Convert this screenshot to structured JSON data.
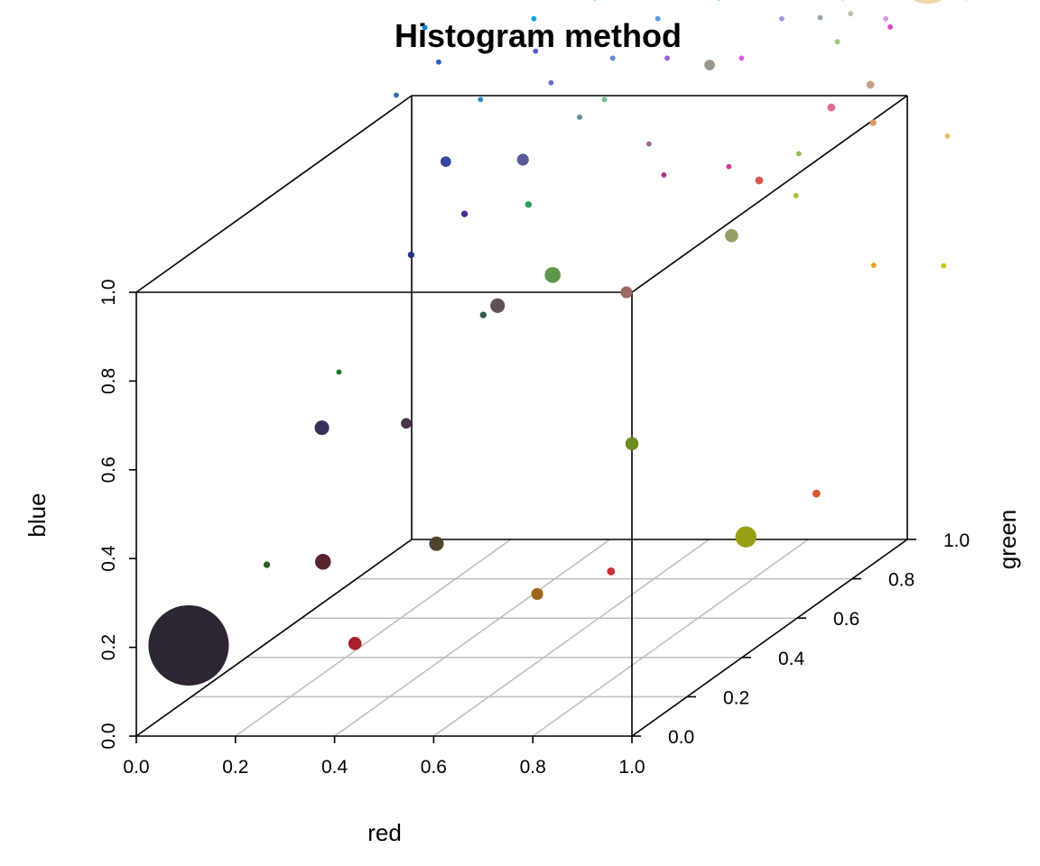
{
  "chart_data": {
    "type": "scatter3d",
    "title": "Histogram method",
    "xlabel": "red",
    "ylabel": "green",
    "zlabel": "blue",
    "xlim": [
      0,
      1
    ],
    "ylim": [
      0,
      1
    ],
    "zlim": [
      0,
      1
    ],
    "x_ticks": [
      "0.0",
      "0.2",
      "0.4",
      "0.6",
      "0.8",
      "1.0"
    ],
    "y_ticks": [
      "0.0",
      "0.2",
      "0.4",
      "0.6",
      "0.8",
      "1.0"
    ],
    "z_ticks": [
      "0.0",
      "0.2",
      "0.4",
      "0.6",
      "0.8",
      "1.0"
    ],
    "grid": true,
    "point_size_encodes": "histogram frequency",
    "points": [
      {
        "x": 0.05,
        "y": 0.1,
        "z": 0.16,
        "size": 6.1,
        "color": "#2d2532"
      },
      {
        "x": 0.33,
        "y": 0.2,
        "z": 0.12,
        "size": 1.0,
        "color": "#a8202a"
      },
      {
        "x": 0.11,
        "y": 0.48,
        "z": 0.18,
        "size": 1.2,
        "color": "#55232c"
      },
      {
        "x": 0.2,
        "y": 0.73,
        "z": 0.11,
        "size": 1.1,
        "color": "#4c472a"
      },
      {
        "x": 0.47,
        "y": 0.61,
        "z": 0.05,
        "size": 0.9,
        "color": "#a06418"
      },
      {
        "x": 0.53,
        "y": 0.77,
        "z": 0.03,
        "size": 0.6,
        "color": "#c83038"
      },
      {
        "x": 0.73,
        "y": 0.9,
        "z": 0.05,
        "size": 1.6,
        "color": "#96a014"
      },
      {
        "x": 0.5,
        "y": 0.9,
        "z": 0.26,
        "size": 1.0,
        "color": "#6e8c1e"
      },
      {
        "x": 0.85,
        "y": 0.94,
        "z": 0.13,
        "size": 0.6,
        "color": "#d85a2a"
      },
      {
        "x": 0.03,
        "y": 0.42,
        "z": 0.2,
        "size": 0.5,
        "color": "#2d5a23"
      },
      {
        "x": 0.03,
        "y": 0.62,
        "z": 0.42,
        "size": 1.1,
        "color": "#34315a"
      },
      {
        "x": 0.15,
        "y": 0.71,
        "z": 0.39,
        "size": 0.8,
        "color": "#4b334e"
      },
      {
        "x": 0.24,
        "y": 0.88,
        "z": 0.58,
        "size": 1.1,
        "color": "#5f5153"
      },
      {
        "x": 0.39,
        "y": 0.81,
        "z": 0.68,
        "size": 1.2,
        "color": "#5c9448"
      },
      {
        "x": 0.5,
        "y": 0.88,
        "z": 0.61,
        "size": 0.9,
        "color": "#9a6a5e"
      },
      {
        "x": 0.69,
        "y": 0.92,
        "z": 0.72,
        "size": 1.0,
        "color": "#969e66"
      },
      {
        "x": 0.02,
        "y": 0.7,
        "z": 0.51,
        "size": 0.4,
        "color": "#14782a"
      },
      {
        "x": 0.2,
        "y": 0.9,
        "z": 0.55,
        "size": 0.5,
        "color": "#2d5a4a"
      },
      {
        "x": 0.06,
        "y": 0.89,
        "z": 0.69,
        "size": 0.5,
        "color": "#2a3288"
      },
      {
        "x": 0.14,
        "y": 0.94,
        "z": 0.76,
        "size": 0.5,
        "color": "#4a2c96"
      },
      {
        "x": 0.28,
        "y": 0.92,
        "z": 0.79,
        "size": 0.5,
        "color": "#2a9c5a"
      },
      {
        "x": 0.13,
        "y": 0.89,
        "z": 0.9,
        "size": 0.8,
        "color": "#3346a0"
      },
      {
        "x": 0.28,
        "y": 0.9,
        "z": 0.9,
        "size": 0.9,
        "color": "#5a5a9a"
      },
      {
        "x": 0.4,
        "y": 0.89,
        "z": 1.0,
        "size": 0.4,
        "color": "#5a8896"
      },
      {
        "x": 0.54,
        "y": 0.89,
        "z": 0.94,
        "size": 0.4,
        "color": "#9a6a9a"
      },
      {
        "x": 0.45,
        "y": 0.89,
        "z": 1.04,
        "size": 0.4,
        "color": "#6ec086"
      },
      {
        "x": 0.57,
        "y": 0.89,
        "z": 0.87,
        "size": 0.4,
        "color": "#b03090"
      },
      {
        "x": 0.69,
        "y": 0.91,
        "z": 0.88,
        "size": 0.4,
        "color": "#d83a8e"
      },
      {
        "x": 0.64,
        "y": 0.93,
        "z": 1.1,
        "size": 0.8,
        "color": "#9a948e"
      },
      {
        "x": 0.74,
        "y": 0.93,
        "z": 0.84,
        "size": 0.6,
        "color": "#d85a50"
      },
      {
        "x": 0.82,
        "y": 0.92,
        "z": 0.81,
        "size": 0.4,
        "color": "#a0c03c"
      },
      {
        "x": 0.82,
        "y": 0.93,
        "z": 0.9,
        "size": 0.4,
        "color": "#92c048"
      },
      {
        "x": 0.88,
        "y": 0.94,
        "z": 1.0,
        "size": 0.6,
        "color": "#e06a8e"
      },
      {
        "x": 0.97,
        "y": 0.93,
        "z": 0.97,
        "size": 0.5,
        "color": "#d89a64"
      },
      {
        "x": 0.97,
        "y": 0.92,
        "z": 1.06,
        "size": 0.6,
        "color": "#c8a08e"
      },
      {
        "x": 0.92,
        "y": 0.89,
        "z": 1.17,
        "size": 0.4,
        "color": "#9ac87a"
      },
      {
        "x": 1.01,
        "y": 0.92,
        "z": 1.19,
        "size": 0.4,
        "color": "#e040c8"
      },
      {
        "x": 1.12,
        "y": 0.93,
        "z": 0.94,
        "size": 0.4,
        "color": "#f0b864"
      },
      {
        "x": 0.91,
        "y": 1.04,
        "z": 0.6,
        "size": 0.4,
        "color": "#e8a020"
      },
      {
        "x": 1.04,
        "y": 1.06,
        "z": 0.59,
        "size": 0.4,
        "color": "#c8c814"
      },
      {
        "x": 1.08,
        "y": 0.93,
        "z": 1.3,
        "size": 4.2,
        "color": "#ecd8a8"
      },
      {
        "x": 0.03,
        "y": 0.89,
        "z": 1.05,
        "size": 0.4,
        "color": "#2a70b8"
      },
      {
        "x": 0.2,
        "y": 0.89,
        "z": 1.04,
        "size": 0.4,
        "color": "#2a8cba"
      },
      {
        "x": 0.11,
        "y": 0.9,
        "z": 1.12,
        "size": 0.4,
        "color": "#2a5ecc"
      },
      {
        "x": 0.3,
        "y": 0.91,
        "z": 1.14,
        "size": 0.4,
        "color": "#4e5ed0"
      },
      {
        "x": 0.32,
        "y": 0.93,
        "z": 1.06,
        "size": 0.4,
        "color": "#5a6ed8"
      },
      {
        "x": 0.45,
        "y": 0.92,
        "z": 1.12,
        "size": 0.4,
        "color": "#5a8ae0"
      },
      {
        "x": 0.56,
        "y": 0.92,
        "z": 1.12,
        "size": 0.4,
        "color": "#9a5ae0"
      },
      {
        "x": 0.71,
        "y": 0.92,
        "z": 1.12,
        "size": 0.4,
        "color": "#e05ae8"
      },
      {
        "x": 0.06,
        "y": 0.94,
        "z": 1.18,
        "size": 0.4,
        "color": "#0a84e0"
      },
      {
        "x": 0.28,
        "y": 0.94,
        "z": 1.2,
        "size": 0.4,
        "color": "#12a0e0"
      },
      {
        "x": 0.53,
        "y": 0.94,
        "z": 1.2,
        "size": 0.4,
        "color": "#5a9ae0"
      },
      {
        "x": 0.78,
        "y": 0.94,
        "z": 1.2,
        "size": 0.4,
        "color": "#9a9ae0"
      },
      {
        "x": 0.99,
        "y": 0.94,
        "z": 1.2,
        "size": 0.4,
        "color": "#d89ae0"
      },
      {
        "x": 0.37,
        "y": 1.0,
        "z": 1.22,
        "size": 0.4,
        "color": "#1ed8f0"
      },
      {
        "x": 0.62,
        "y": 1.0,
        "z": 1.22,
        "size": 0.4,
        "color": "#4ad8e0"
      },
      {
        "x": 0.87,
        "y": 1.0,
        "z": 1.22,
        "size": 0.4,
        "color": "#8ae0e0"
      },
      {
        "x": 1.12,
        "y": 1.0,
        "z": 1.22,
        "size": 0.4,
        "color": "#dad8d0"
      },
      {
        "x": 0.88,
        "y": 0.9,
        "z": 1.22,
        "size": 0.4,
        "color": "#9aa8b8"
      },
      {
        "x": 0.93,
        "y": 0.92,
        "z": 1.22,
        "size": 0.4,
        "color": "#b8c0b0"
      },
      {
        "x": 1.12,
        "y": 0.92,
        "z": 1.28,
        "size": 0.5,
        "color": "#d8d8c0"
      }
    ]
  }
}
